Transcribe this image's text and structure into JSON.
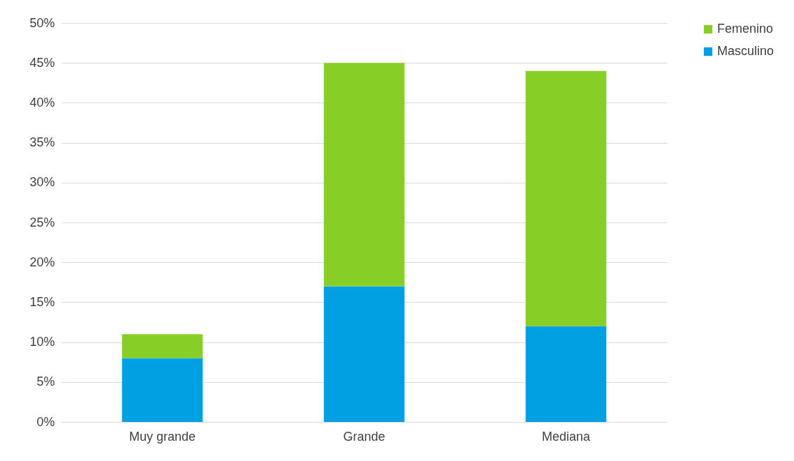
{
  "chart_data": {
    "type": "bar",
    "stacked": true,
    "categories": [
      "Muy grande",
      "Grande",
      "Mediana"
    ],
    "series": [
      {
        "name": "Masculino",
        "color": "#00a0e3",
        "values": [
          8,
          17,
          12
        ]
      },
      {
        "name": "Femenino",
        "color": "#87cf26",
        "values": [
          3,
          28,
          32
        ]
      }
    ],
    "ylim": [
      0,
      50
    ],
    "yticks": [
      {
        "value": 0,
        "label": "0%"
      },
      {
        "value": 5,
        "label": "5%"
      },
      {
        "value": 10,
        "label": "10%"
      },
      {
        "value": 15,
        "label": "15%"
      },
      {
        "value": 20,
        "label": "20%"
      },
      {
        "value": 25,
        "label": "25%"
      },
      {
        "value": 30,
        "label": "30%"
      },
      {
        "value": 35,
        "label": "35%"
      },
      {
        "value": 40,
        "label": "40%"
      },
      {
        "value": 45,
        "label": "45%"
      },
      {
        "value": 50,
        "label": "50%"
      }
    ],
    "grid": "y",
    "legend": "right"
  }
}
